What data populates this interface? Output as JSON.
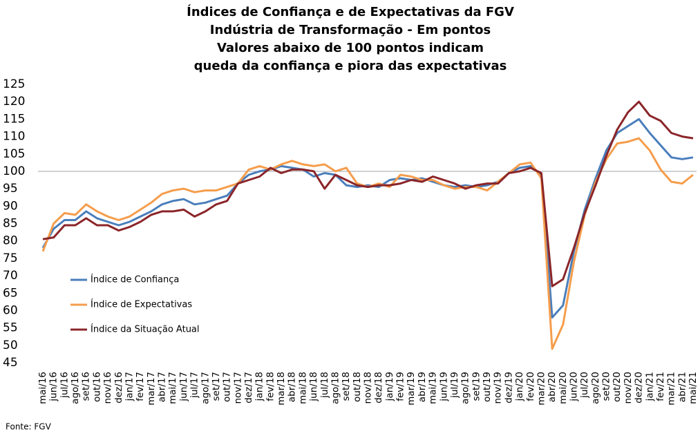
{
  "chart_data": {
    "type": "line",
    "title": [
      "Índices de Confiança e de Expectativas da FGV",
      "Indústria de Transformação - Em pontos",
      "Valores abaixo de 100 pontos indicam",
      "queda da confiança e piora das expectativas"
    ],
    "source": "Fonte: FGV",
    "categories": [
      "mai/16",
      "jun/16",
      "jul/16",
      "ago/16",
      "set/16",
      "out/16",
      "nov/16",
      "dez/16",
      "jan/17",
      "fev/17",
      "mar/17",
      "abr/17",
      "mai/17",
      "jun/17",
      "jul/17",
      "ago/17",
      "set/17",
      "out/17",
      "nov/17",
      "dez/17",
      "jan/18",
      "fev/18",
      "mar/18",
      "abr/18",
      "mai/18",
      "jun/18",
      "jul/18",
      "ago/18",
      "set/18",
      "out/18",
      "nov/18",
      "dez/18",
      "jan/19",
      "fev/19",
      "mar/19",
      "abr/19",
      "mai/19",
      "jun/19",
      "jul/19",
      "ago/19",
      "set/19",
      "out/19",
      "nov/19",
      "dez/19",
      "jan/20",
      "fev/20",
      "mar/20",
      "abr/20",
      "mai/20",
      "jun/20",
      "jul/20",
      "ago/20",
      "set/20",
      "out/20",
      "nov/20",
      "dez/20",
      "jan/21",
      "fev/21",
      "mar/21",
      "abr/21",
      "mai/21"
    ],
    "series": [
      {
        "name": "Índice de Confiança",
        "color": "#4a7ebb",
        "values": [
          78,
          83.5,
          86,
          86,
          88.5,
          86.5,
          85.5,
          84.5,
          85.5,
          87,
          88.5,
          90.5,
          91.5,
          92,
          90.5,
          91,
          92,
          93,
          96.5,
          99,
          100,
          100.5,
          101.5,
          101,
          100.5,
          98.5,
          99.5,
          99,
          96,
          95.5,
          96,
          95.5,
          97.5,
          98,
          97.5,
          98,
          97,
          96,
          95.5,
          96,
          95.5,
          96,
          97,
          99.5,
          101,
          101.5,
          99,
          58,
          61.5,
          77,
          89,
          98,
          106,
          111,
          113,
          115,
          111,
          107.5,
          104,
          103.5,
          104
        ]
      },
      {
        "name": "Índice de Expectativas",
        "color": "#f59d4c",
        "values": [
          77,
          85,
          88,
          87.5,
          90.5,
          88.5,
          87,
          86,
          87,
          89,
          91,
          93.5,
          94.5,
          95,
          94,
          94.5,
          94.5,
          95.5,
          96.5,
          100.5,
          101.5,
          100.5,
          102,
          103,
          102,
          101.5,
          102,
          100,
          101,
          96.5,
          95.5,
          96.5,
          95.5,
          99,
          98.5,
          97.5,
          97.5,
          96,
          95,
          95.5,
          95.5,
          94.5,
          97,
          99.5,
          102,
          102.5,
          98,
          49,
          56,
          74,
          87.5,
          97,
          103.5,
          108,
          108.5,
          109.5,
          106,
          100.5,
          97,
          96.5,
          99
        ]
      },
      {
        "name": "Índice da Situação Atual",
        "color": "#8b2529",
        "values": [
          80.5,
          81,
          84.5,
          84.5,
          86.5,
          84.5,
          84.5,
          83,
          84,
          85.5,
          87.5,
          88.5,
          88.5,
          89,
          87,
          88.5,
          90.5,
          91.5,
          96.5,
          97.5,
          98.5,
          101,
          99.5,
          100.5,
          100.5,
          100,
          95,
          99,
          97.5,
          96,
          95.5,
          96,
          96,
          96.5,
          97.5,
          97,
          98.5,
          97.5,
          96.5,
          95,
          96,
          96.5,
          96.5,
          99.5,
          100,
          101,
          99.5,
          67,
          69,
          78,
          88,
          96,
          104.5,
          112,
          117,
          120,
          116,
          114.5,
          111,
          110,
          109.5
        ]
      }
    ],
    "ylim": [
      45,
      125
    ],
    "yticks": [
      45,
      50,
      55,
      60,
      65,
      70,
      75,
      80,
      85,
      90,
      95,
      100,
      105,
      110,
      115,
      120,
      125
    ],
    "reference_line": 100,
    "legend": "left"
  }
}
